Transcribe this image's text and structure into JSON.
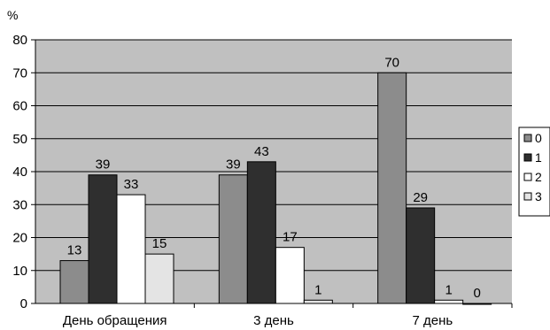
{
  "chart_data": {
    "type": "bar",
    "ylabel": "%",
    "ylim": [
      0,
      80
    ],
    "yticks": [
      0,
      10,
      20,
      30,
      40,
      50,
      60,
      70,
      80
    ],
    "grid": true,
    "legend_position": "right",
    "categories": [
      "День обращения",
      "3 день",
      "7 день"
    ],
    "series": [
      {
        "name": "0",
        "color": "#8c8c8c",
        "values": [
          13,
          39,
          70
        ]
      },
      {
        "name": "1",
        "color": "#2f2f2f",
        "values": [
          39,
          43,
          29
        ]
      },
      {
        "name": "2",
        "color": "#ffffff",
        "values": [
          33,
          17,
          1
        ]
      },
      {
        "name": "3",
        "color": "#e4e4e4",
        "values": [
          15,
          1,
          0
        ]
      }
    ],
    "plot_background": "#c0c0c0"
  }
}
